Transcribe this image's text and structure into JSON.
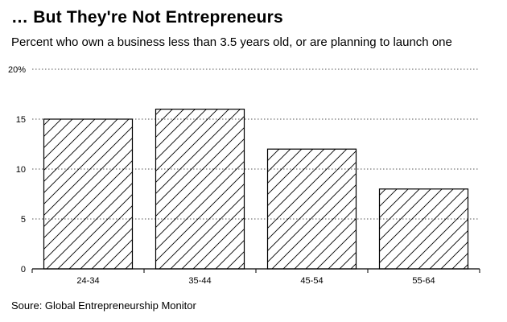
{
  "chart_data": {
    "type": "bar",
    "title": "… But They're Not Entrepreneurs",
    "subtitle": "Percent who own a business less than 3.5 years old, or are planning to launch one",
    "source": "Soure: Global Entrepreneurship Monitor",
    "categories": [
      "24-34",
      "35-44",
      "45-54",
      "55-64"
    ],
    "values": [
      15,
      16,
      12,
      8
    ],
    "ylim": [
      0,
      20
    ],
    "yticks": [
      0,
      5,
      10,
      15,
      20
    ],
    "ytick_labels": [
      "0",
      "5",
      "10",
      "15",
      "20%"
    ],
    "grid": "horizontal dotted",
    "bar_fill": "diagonal hatch",
    "bar_color": "#ffffff",
    "line_color": "#000000"
  }
}
